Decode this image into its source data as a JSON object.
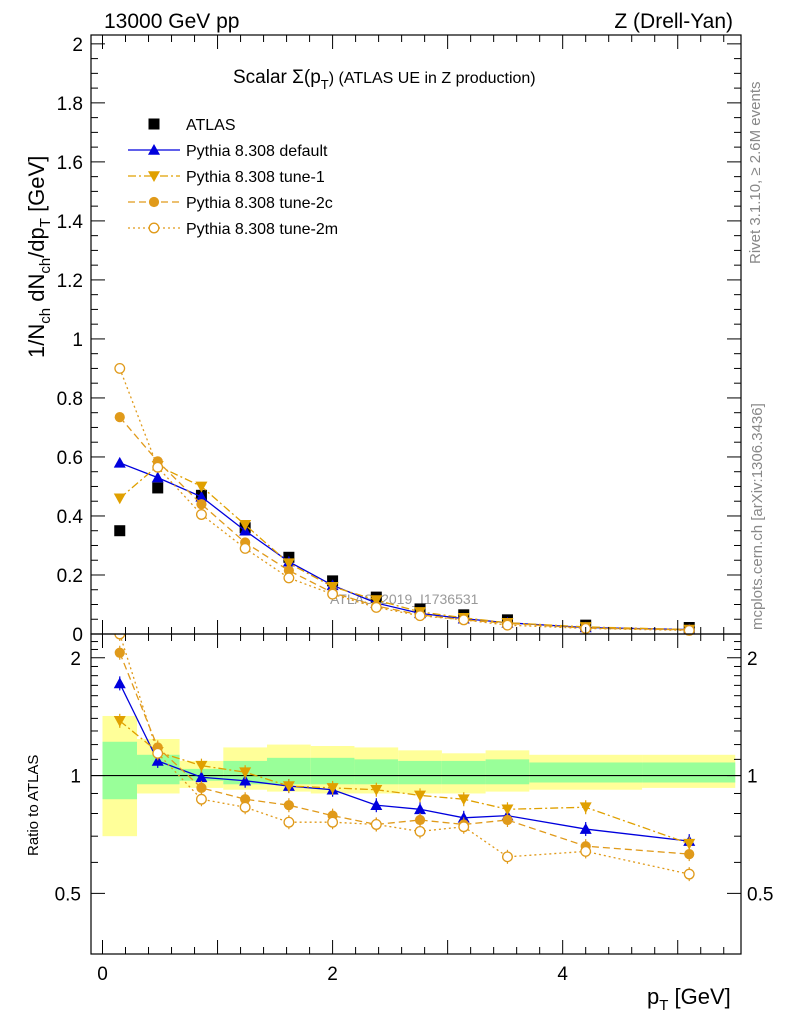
{
  "header": {
    "left": "13000 GeV pp",
    "right": "Z (Drell-Yan)"
  },
  "side_text": {
    "rivet": "Rivet 3.1.10, ≥ 2.6M events",
    "mcplots": "mcplots.cern.ch [arXiv:1306.3436]"
  },
  "chart_data": [
    {
      "type": "scatter",
      "title": "Scalar Σ(p_T) (ATLAS UE in Z production)",
      "title_parts": {
        "main": "Scalar Σ(p",
        "sub": "T",
        "rest": ") (ATLAS UE in Z production)"
      },
      "xlabel": "p_T [GeV]",
      "ylabel": "1/N_ch dN_ch/dp_T [GeV]",
      "xlim": [
        -0.1,
        5.55
      ],
      "ylim": [
        0,
        2.03
      ],
      "yticks": [
        "0",
        "0.2",
        "0.4",
        "0.6",
        "0.8",
        "1",
        "1.2",
        "1.4",
        "1.6",
        "1.8",
        "2"
      ],
      "watermark": "ATLAS_2019_I1736531",
      "legend_position": "top-left",
      "x": [
        0.15,
        0.48,
        0.86,
        1.24,
        1.62,
        2.0,
        2.38,
        2.76,
        3.14,
        3.52,
        4.2,
        5.1
      ],
      "series": [
        {
          "name": "ATLAS",
          "color": "#000000",
          "marker": "square",
          "line": "none",
          "values": [
            0.35,
            0.495,
            0.47,
            0.36,
            0.26,
            0.18,
            0.125,
            0.085,
            0.065,
            0.048,
            0.03,
            0.022
          ]
        },
        {
          "name": "Pythia 8.308 default",
          "color": "#0000dd",
          "marker": "triangle-up",
          "line": "solid",
          "values": [
            0.58,
            0.53,
            0.465,
            0.35,
            0.245,
            0.165,
            0.105,
            0.07,
            0.052,
            0.038,
            0.022,
            0.015
          ]
        },
        {
          "name": "Pythia 8.308 tune-1",
          "color": "#e0a000",
          "marker": "triangle-down",
          "line": "dashdot",
          "values": [
            0.46,
            0.57,
            0.5,
            0.37,
            0.24,
            0.16,
            0.115,
            0.075,
            0.055,
            0.038,
            0.024,
            0.015
          ]
        },
        {
          "name": "Pythia 8.308 tune-2c",
          "color": "#e09a1a",
          "marker": "circle",
          "line": "dashed",
          "values": [
            0.735,
            0.585,
            0.44,
            0.31,
            0.215,
            0.14,
            0.095,
            0.065,
            0.048,
            0.036,
            0.02,
            0.014
          ]
        },
        {
          "name": "Pythia 8.308 tune-2m",
          "color": "#e09a1a",
          "marker": "circle-open",
          "line": "dotted",
          "values": [
            0.9,
            0.565,
            0.405,
            0.29,
            0.19,
            0.135,
            0.09,
            0.062,
            0.048,
            0.03,
            0.019,
            0.012
          ]
        }
      ]
    },
    {
      "type": "scatter",
      "ylabel": "Ratio to ATLAS",
      "xlabel": "p_T [GeV]",
      "xlim": [
        -0.1,
        5.55
      ],
      "ylim": [
        0.35,
        2.3
      ],
      "xticks": [
        "0",
        "2",
        "4"
      ],
      "yticks": [
        "0.5",
        "1",
        "2"
      ],
      "bands": {
        "edges": [
          0.0,
          0.3,
          0.67,
          1.05,
          1.43,
          1.81,
          2.19,
          2.57,
          2.95,
          3.33,
          3.71,
          4.69,
          5.5
        ],
        "yellow_low": [
          0.7,
          0.9,
          0.93,
          0.92,
          0.91,
          0.9,
          0.9,
          0.9,
          0.9,
          0.91,
          0.92,
          0.93
        ],
        "yellow_high": [
          1.42,
          1.24,
          1.09,
          1.18,
          1.2,
          1.19,
          1.18,
          1.16,
          1.14,
          1.16,
          1.13,
          1.13
        ],
        "green_low": [
          0.87,
          0.95,
          0.97,
          0.95,
          0.95,
          0.95,
          0.95,
          0.95,
          0.95,
          0.95,
          0.96,
          0.96
        ],
        "green_high": [
          1.22,
          1.13,
          1.04,
          1.09,
          1.11,
          1.11,
          1.1,
          1.09,
          1.09,
          1.1,
          1.08,
          1.08
        ]
      },
      "x": [
        0.15,
        0.48,
        0.86,
        1.24,
        1.62,
        2.0,
        2.38,
        2.76,
        3.14,
        3.52,
        4.2,
        5.1
      ],
      "series": [
        {
          "name": "Pythia 8.308 default",
          "color": "#0000dd",
          "marker": "triangle-up",
          "line": "solid",
          "values": [
            1.72,
            1.09,
            0.99,
            0.97,
            0.94,
            0.92,
            0.84,
            0.82,
            0.78,
            0.79,
            0.73,
            0.68
          ]
        },
        {
          "name": "Pythia 8.308 tune-1",
          "color": "#e0a000",
          "marker": "triangle-down",
          "line": "dashdot",
          "values": [
            1.38,
            1.15,
            1.06,
            1.02,
            0.94,
            0.93,
            0.92,
            0.89,
            0.87,
            0.82,
            0.83,
            0.67
          ]
        },
        {
          "name": "Pythia 8.308 tune-2c",
          "color": "#e09a1a",
          "marker": "circle",
          "line": "dashed",
          "values": [
            2.06,
            1.18,
            0.93,
            0.87,
            0.84,
            0.79,
            0.75,
            0.77,
            0.75,
            0.77,
            0.66,
            0.63
          ]
        },
        {
          "name": "Pythia 8.308 tune-2m",
          "color": "#e09a1a",
          "marker": "circle-open",
          "line": "dotted",
          "values": [
            2.3,
            1.14,
            0.87,
            0.83,
            0.76,
            0.76,
            0.75,
            0.72,
            0.74,
            0.62,
            0.64,
            0.56
          ]
        }
      ]
    }
  ]
}
